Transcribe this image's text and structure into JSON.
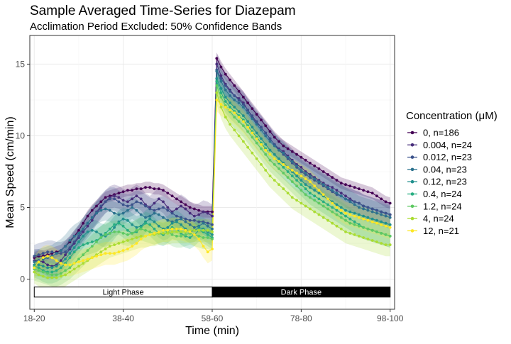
{
  "chart_data": {
    "type": "line",
    "title": "Sample Averaged Time-Series for Diazepam",
    "subtitle": "Acclimation Period Excluded: 50% Confidence Bands",
    "xlabel": "Time (min)",
    "ylabel": "Mean Speed (cm/min)",
    "xlim": [
      18,
      100
    ],
    "ylim": [
      -2.1,
      17.0
    ],
    "x_ticks": [
      {
        "value": 19,
        "label": "18-20"
      },
      {
        "value": 39,
        "label": "38-40"
      },
      {
        "value": 59,
        "label": "58-60"
      },
      {
        "value": 79,
        "label": "78-80"
      },
      {
        "value": 99,
        "label": "98-100"
      }
    ],
    "y_ticks": [
      0,
      5,
      10,
      15
    ],
    "grid": true,
    "legend": {
      "title": "Concentration (μM)",
      "placement": "right"
    },
    "phases": [
      {
        "label": "Light Phase",
        "x_start": 19,
        "x_end": 59,
        "fill": "#ffffff",
        "text_color": "#000000"
      },
      {
        "label": "Dark Phase",
        "x_start": 59,
        "x_end": 99,
        "fill": "#000000",
        "text_color": "#ffffff"
      }
    ],
    "x": [
      19,
      20,
      21,
      22,
      23,
      24,
      25,
      26,
      27,
      28,
      29,
      30,
      31,
      32,
      33,
      34,
      35,
      36,
      37,
      38,
      39,
      40,
      41,
      42,
      43,
      44,
      45,
      46,
      47,
      48,
      49,
      50,
      51,
      52,
      53,
      54,
      55,
      56,
      57,
      58,
      59,
      60,
      61,
      62,
      63,
      64,
      65,
      66,
      67,
      68,
      69,
      70,
      71,
      72,
      73,
      74,
      75,
      76,
      77,
      78,
      79,
      80,
      81,
      82,
      83,
      84,
      85,
      86,
      87,
      88,
      89,
      90,
      91,
      92,
      93,
      94,
      95,
      96,
      97,
      98,
      99
    ],
    "series": [
      {
        "name": "0, n=186",
        "color": "#440154",
        "values": [
          1.5,
          1.6,
          1.6,
          1.7,
          1.8,
          1.9,
          2.0,
          2.3,
          2.6,
          3.0,
          3.4,
          3.9,
          4.4,
          4.8,
          5.1,
          5.4,
          5.7,
          5.8,
          5.9,
          6.0,
          6.1,
          6.2,
          6.2,
          6.3,
          6.3,
          6.4,
          6.4,
          6.3,
          6.3,
          6.2,
          6.0,
          5.8,
          5.6,
          5.4,
          5.2,
          5.0,
          4.9,
          4.8,
          4.7,
          4.7,
          4.7,
          15.4,
          14.8,
          14.3,
          13.9,
          13.5,
          13.1,
          12.7,
          12.3,
          11.9,
          11.5,
          11.1,
          10.7,
          10.3,
          9.9,
          9.6,
          9.3,
          9.1,
          8.9,
          8.7,
          8.5,
          8.3,
          8.1,
          7.9,
          7.7,
          7.5,
          7.3,
          7.1,
          6.9,
          6.7,
          6.6,
          6.5,
          6.4,
          6.3,
          6.2,
          6.1,
          6.0,
          5.8,
          5.6,
          5.4,
          5.3
        ],
        "band": 0.4
      },
      {
        "name": "0.004, n=24",
        "color": "#472d7b",
        "values": [
          1.3,
          1.3,
          1.2,
          1.0,
          0.9,
          1.0,
          1.3,
          1.7,
          2.1,
          2.5,
          2.9,
          3.3,
          3.7,
          4.1,
          4.6,
          5.0,
          5.4,
          5.7,
          5.8,
          5.7,
          5.5,
          5.4,
          5.6,
          5.8,
          5.6,
          5.2,
          5.0,
          5.3,
          5.6,
          5.4,
          5.0,
          4.7,
          4.9,
          5.1,
          4.9,
          4.6,
          4.4,
          4.5,
          4.7,
          4.6,
          4.4,
          15.0,
          14.2,
          13.6,
          13.2,
          12.8,
          12.6,
          12.3,
          11.8,
          11.3,
          10.9,
          10.6,
          10.2,
          9.8,
          9.4,
          9.1,
          8.9,
          8.6,
          8.3,
          8.0,
          7.8,
          7.5,
          7.3,
          7.1,
          6.9,
          6.7,
          6.5,
          6.4,
          6.2,
          6.0,
          5.8,
          5.6,
          5.4,
          5.3,
          5.1,
          5.0,
          4.9,
          4.8,
          4.7,
          4.6,
          4.5
        ],
        "band": 0.8
      },
      {
        "name": "0.012, n=23",
        "color": "#3b528b",
        "values": [
          1.6,
          1.7,
          1.8,
          1.9,
          1.9,
          1.8,
          1.8,
          1.9,
          2.2,
          2.6,
          3.0,
          3.5,
          3.9,
          4.3,
          4.7,
          5.1,
          5.4,
          5.6,
          5.6,
          5.4,
          5.2,
          5.1,
          5.2,
          5.4,
          5.3,
          5.1,
          4.9,
          4.8,
          4.9,
          5.0,
          4.8,
          4.6,
          4.4,
          4.3,
          4.2,
          4.1,
          4.1,
          4.0,
          4.0,
          3.9,
          3.8,
          14.6,
          14.0,
          13.5,
          13.1,
          12.8,
          12.5,
          12.2,
          11.8,
          11.4,
          11.0,
          10.6,
          10.2,
          9.8,
          9.4,
          9.0,
          8.7,
          8.4,
          8.1,
          7.8,
          7.5,
          7.3,
          7.1,
          6.9,
          6.7,
          6.5,
          6.3,
          6.1,
          5.9,
          5.8,
          5.6,
          5.5,
          5.4,
          5.3,
          5.1,
          5.0,
          4.9,
          4.8,
          4.7,
          4.6,
          4.5
        ],
        "band": 0.8
      },
      {
        "name": "0.04, n=23",
        "color": "#2c728e",
        "values": [
          1.2,
          1.3,
          1.4,
          1.5,
          1.6,
          1.8,
          2.0,
          2.3,
          2.7,
          3.0,
          3.2,
          3.5,
          3.9,
          4.3,
          4.6,
          4.8,
          4.9,
          4.8,
          4.6,
          4.5,
          4.6,
          4.8,
          5.0,
          4.8,
          4.5,
          4.3,
          4.4,
          4.6,
          4.5,
          4.3,
          4.1,
          4.0,
          4.1,
          4.2,
          4.0,
          3.8,
          3.6,
          3.7,
          3.9,
          3.7,
          3.5,
          14.5,
          13.8,
          13.2,
          12.8,
          12.5,
          12.3,
          12.0,
          11.6,
          11.2,
          10.8,
          10.4,
          10.0,
          9.6,
          9.3,
          9.0,
          8.8,
          8.5,
          8.2,
          7.9,
          7.6,
          7.4,
          7.2,
          7.0,
          6.8,
          6.6,
          6.4,
          6.2,
          6.0,
          5.8,
          5.6,
          5.4,
          5.2,
          5.0,
          4.9,
          4.8,
          4.7,
          4.6,
          4.5,
          4.4,
          4.3
        ],
        "band": 0.8
      },
      {
        "name": "0.12, n=23",
        "color": "#21908d",
        "values": [
          1.0,
          1.0,
          0.9,
          0.8,
          0.8,
          0.9,
          1.1,
          1.4,
          1.8,
          2.2,
          2.6,
          3.0,
          3.3,
          3.4,
          3.3,
          3.1,
          3.0,
          3.2,
          3.6,
          4.0,
          4.2,
          4.1,
          3.8,
          3.6,
          3.7,
          4.0,
          4.2,
          4.0,
          3.7,
          3.5,
          3.6,
          3.9,
          4.0,
          3.8,
          3.5,
          3.3,
          3.4,
          3.6,
          3.5,
          3.3,
          3.1,
          14.0,
          13.3,
          12.7,
          12.3,
          12.0,
          11.7,
          11.4,
          11.0,
          10.6,
          10.2,
          9.8,
          9.4,
          9.0,
          8.7,
          8.4,
          8.1,
          7.8,
          7.5,
          7.2,
          6.9,
          6.6,
          6.4,
          6.2,
          6.0,
          5.8,
          5.6,
          5.4,
          5.2,
          5.0,
          4.8,
          4.7,
          4.6,
          4.5,
          4.4,
          4.3,
          4.2,
          4.1,
          4.0,
          3.9,
          3.8
        ],
        "band": 0.8
      },
      {
        "name": "0.4, n=24",
        "color": "#27ad81",
        "values": [
          0.9,
          0.8,
          0.6,
          0.5,
          0.5,
          0.6,
          0.8,
          1.1,
          1.5,
          1.9,
          2.2,
          2.4,
          2.5,
          2.6,
          2.7,
          2.9,
          3.2,
          3.5,
          3.8,
          3.9,
          3.7,
          3.4,
          3.2,
          3.3,
          3.6,
          3.9,
          3.8,
          3.5,
          3.2,
          3.1,
          3.3,
          3.6,
          3.5,
          3.2,
          3.0,
          2.9,
          3.1,
          3.4,
          3.3,
          3.1,
          2.9,
          13.8,
          13.0,
          12.4,
          12.0,
          11.7,
          11.4,
          11.1,
          10.7,
          10.3,
          9.9,
          9.5,
          9.1,
          8.7,
          8.4,
          8.1,
          7.8,
          7.5,
          7.2,
          6.9,
          6.6,
          6.3,
          6.0,
          5.8,
          5.6,
          5.4,
          5.2,
          5.0,
          4.8,
          4.6,
          4.4,
          4.2,
          4.0,
          3.8,
          3.6,
          3.5,
          3.4,
          3.3,
          3.2,
          3.1,
          3.0
        ],
        "band": 0.8
      },
      {
        "name": "1.2, n=24",
        "color": "#5ec962",
        "values": [
          0.7,
          0.6,
          0.5,
          0.4,
          0.3,
          0.3,
          0.4,
          0.6,
          0.8,
          1.1,
          1.4,
          1.7,
          2.0,
          2.3,
          2.6,
          2.9,
          3.1,
          3.2,
          3.3,
          3.3,
          3.2,
          3.1,
          3.2,
          3.4,
          3.5,
          3.4,
          3.3,
          3.2,
          3.3,
          3.4,
          3.3,
          3.1,
          3.0,
          3.0,
          3.1,
          3.2,
          3.1,
          3.0,
          2.9,
          2.9,
          2.8,
          13.5,
          12.7,
          12.1,
          11.7,
          11.3,
          11.0,
          10.7,
          10.3,
          9.9,
          9.5,
          9.1,
          8.7,
          8.3,
          8.0,
          7.7,
          7.4,
          7.1,
          6.8,
          6.5,
          6.2,
          5.9,
          5.7,
          5.5,
          5.3,
          5.1,
          4.9,
          4.7,
          4.5,
          4.3,
          4.1,
          3.9,
          3.8,
          3.7,
          3.6,
          3.5,
          3.4,
          3.3,
          3.2,
          3.1,
          3.0
        ],
        "band": 0.8
      },
      {
        "name": "4, n=24",
        "color": "#aadc32",
        "values": [
          0.5,
          0.3,
          0.2,
          0.1,
          0.1,
          0.1,
          0.2,
          0.3,
          0.5,
          0.7,
          0.9,
          1.1,
          1.3,
          1.5,
          1.7,
          1.9,
          2.1,
          2.3,
          2.4,
          2.5,
          2.6,
          2.7,
          2.8,
          2.9,
          3.0,
          3.0,
          3.1,
          3.1,
          3.2,
          3.2,
          3.2,
          3.3,
          3.3,
          3.3,
          3.3,
          3.4,
          3.4,
          3.4,
          3.4,
          3.4,
          3.3,
          13.0,
          12.0,
          11.3,
          10.8,
          10.4,
          10.0,
          9.6,
          9.2,
          8.8,
          8.4,
          8.0,
          7.6,
          7.2,
          6.9,
          6.6,
          6.3,
          6.0,
          5.7,
          5.5,
          5.3,
          5.1,
          4.9,
          4.7,
          4.5,
          4.3,
          4.1,
          3.9,
          3.7,
          3.5,
          3.3,
          3.2,
          3.1,
          3.0,
          2.9,
          2.8,
          2.7,
          2.6,
          2.5,
          2.4,
          2.4
        ],
        "band": 0.8
      },
      {
        "name": "12, n=21",
        "color": "#fde725",
        "values": [
          0.8,
          1.2,
          1.5,
          1.6,
          1.5,
          1.3,
          1.1,
          1.0,
          1.0,
          1.1,
          1.2,
          1.3,
          1.4,
          1.5,
          1.6,
          1.7,
          1.8,
          1.8,
          1.8,
          1.9,
          2.0,
          2.1,
          2.3,
          2.5,
          2.8,
          3.0,
          3.1,
          3.2,
          3.3,
          3.4,
          3.4,
          3.5,
          3.5,
          3.5,
          3.4,
          3.3,
          3.1,
          2.8,
          2.3,
          1.9,
          2.1,
          12.5,
          12.2,
          12.0,
          11.8,
          11.6,
          11.3,
          11.0,
          10.6,
          10.2,
          9.8,
          9.4,
          9.0,
          8.7,
          8.4,
          8.2,
          8.0,
          7.8,
          7.6,
          7.4,
          7.2,
          7.0,
          6.8,
          6.5,
          6.2,
          5.9,
          5.6,
          5.3,
          5.0,
          4.8,
          4.6,
          4.5,
          4.4,
          4.3,
          4.2,
          4.1,
          4.0,
          3.9,
          3.8,
          3.7,
          3.6
        ],
        "band": 0.8
      }
    ]
  }
}
